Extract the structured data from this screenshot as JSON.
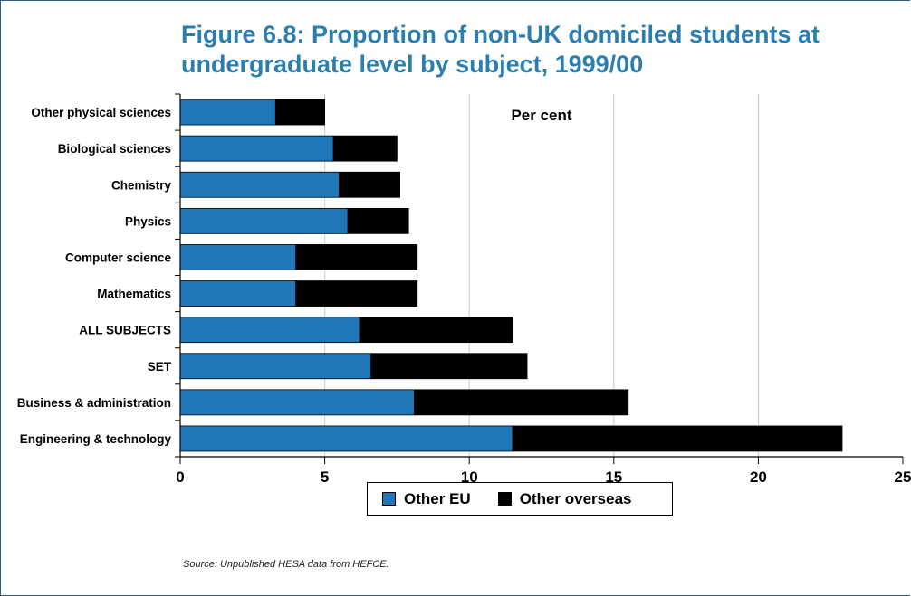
{
  "title_lines": [
    "Figure 6.8: Proportion of non-UK domiciled students at",
    "undergraduate level by subject, 1999/00"
  ],
  "source": "Source: Unpublished HESA data from HEFCE.",
  "chart_data": {
    "type": "bar",
    "orientation": "horizontal",
    "stacked": true,
    "unit_label": "Per cent",
    "categories": [
      "Other physical sciences",
      "Biological sciences",
      "Chemistry",
      "Physics",
      "Computer science",
      "Mathematics",
      "ALL SUBJECTS",
      "SET",
      "Business & administration",
      "Engineering & technology"
    ],
    "series": [
      {
        "name": "Other EU",
        "color": "#1f77b8",
        "values": [
          3.3,
          5.3,
          5.5,
          5.8,
          4.0,
          4.0,
          6.2,
          6.6,
          8.1,
          11.5
        ]
      },
      {
        "name": "Other overseas",
        "color": "#000000",
        "values": [
          1.7,
          2.2,
          2.1,
          2.1,
          4.2,
          4.2,
          5.3,
          5.4,
          7.4,
          11.4
        ]
      }
    ],
    "xlim": [
      0,
      25
    ],
    "xticks": [
      0,
      5,
      10,
      15,
      20,
      25
    ],
    "grid": true,
    "legend_position": "bottom"
  }
}
